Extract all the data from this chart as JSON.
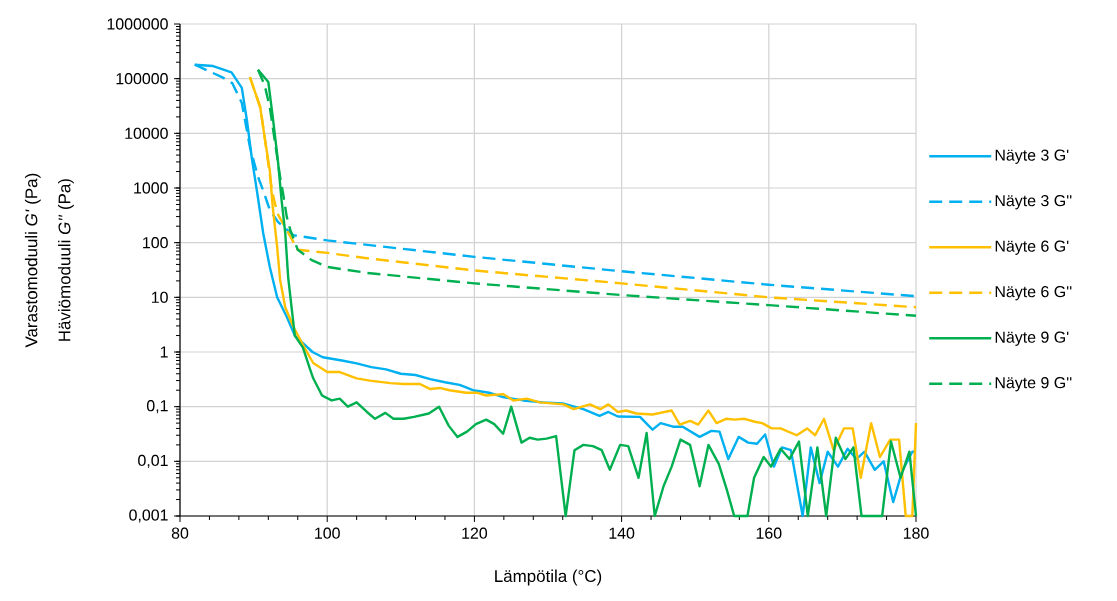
{
  "chart_data": {
    "type": "line",
    "xlabel": "Lämpötila (°C)",
    "ylabel": "Varastomoduuli *G'* (Pa)",
    "annotations": [
      "Häviömoduuli *G''* (Pa)"
    ],
    "log": "y",
    "grid": true,
    "legend": "right",
    "marker": "none",
    "xlim": [
      80,
      180
    ],
    "xticks": [
      80,
      100,
      120,
      140,
      160,
      180
    ],
    "ylim": [
      0.001,
      1000000
    ],
    "yticks": [
      {
        "value": 0.001,
        "label": "0,001"
      },
      {
        "value": 0.01,
        "label": "0,01"
      },
      {
        "value": 0.1,
        "label": "0,1"
      },
      1,
      10,
      100,
      1000,
      10000,
      100000,
      1000000
    ],
    "series": [
      {
        "name": "Näyte 3 G'",
        "color": "#00b0f0",
        "line_style": "solid",
        "x": [
          82,
          84.5,
          87,
          88.4,
          89.1,
          89.8,
          90.5,
          91.3,
          92.2,
          93.2,
          94.5,
          95.6,
          96.7,
          98,
          99.4,
          102,
          104,
          106,
          108,
          110,
          112,
          114,
          116,
          118,
          119.8,
          122,
          123.9,
          126.6,
          129.3,
          132,
          134.8,
          137,
          138.2,
          139.5,
          142.5,
          144.2,
          145.3,
          147,
          148.3,
          150.6,
          152.2,
          153.3,
          154.5,
          155.9,
          157.2,
          158.4,
          159.5,
          160.7,
          161.8,
          163,
          164.6,
          165.7,
          166.9,
          168,
          169.4,
          170.7,
          171.9,
          173,
          174.4,
          175.6,
          176.9,
          178.1,
          179.5,
          180
        ],
        "values": [
          180000,
          170000,
          130000,
          68000,
          17000,
          3200,
          800,
          150,
          36,
          10,
          4.4,
          2,
          1.45,
          1.0,
          0.8,
          0.7,
          0.62,
          0.53,
          0.48,
          0.4,
          0.38,
          0.32,
          0.28,
          0.25,
          0.2,
          0.18,
          0.15,
          0.13,
          0.12,
          0.115,
          0.09,
          0.068,
          0.08,
          0.066,
          0.065,
          0.038,
          0.05,
          0.043,
          0.043,
          0.028,
          0.036,
          0.035,
          0.011,
          0.028,
          0.022,
          0.021,
          0.031,
          0.008,
          0.018,
          0.016,
          0.001,
          0.018,
          0.004,
          0.015,
          0.008,
          0.017,
          0.011,
          0.015,
          0.007,
          0.01,
          0.0018,
          0.0065,
          0.015,
          0.015
        ]
      },
      {
        "name": "Näyte 3 G''",
        "color": "#00b0f0",
        "line_style": "dashed",
        "x": [
          82,
          85.7,
          87.1,
          88.4,
          89.5,
          90.6,
          91.3,
          92.2,
          93.3,
          95.4,
          100,
          120,
          140,
          160,
          180
        ],
        "values": [
          180000,
          107000,
          83000,
          36000,
          5600,
          1600,
          900,
          400,
          240,
          137,
          110,
          55,
          30,
          17,
          10.5
        ]
      },
      {
        "name": "Näyte 6 G'",
        "color": "#ffc000",
        "line_style": "solid",
        "x": [
          89.5,
          90.9,
          91.5,
          92.2,
          92.6,
          93.2,
          93.6,
          94.3,
          95.4,
          96.7,
          98.1,
          100,
          101.7,
          104,
          105.8,
          108.6,
          110.4,
          112.6,
          114,
          115.3,
          116.6,
          118.9,
          120.3,
          121.6,
          123.9,
          125.3,
          127.1,
          128.9,
          132.1,
          133.5,
          135.7,
          137.1,
          138.2,
          139.5,
          140.6,
          142,
          144.2,
          146.8,
          147.9,
          149.3,
          150.4,
          151.8,
          152.9,
          154.2,
          155.4,
          156.7,
          158.1,
          159.1,
          160.4,
          161.6,
          163.8,
          165.2,
          166.3,
          167.5,
          168.8,
          170.2,
          171.4,
          172.5,
          173.9,
          175.1,
          176.5,
          177.7,
          178.6,
          179.5,
          180
        ],
        "values": [
          107000,
          30000,
          8500,
          2100,
          450,
          83,
          21,
          6.6,
          2.9,
          1.35,
          0.63,
          0.43,
          0.43,
          0.33,
          0.3,
          0.27,
          0.26,
          0.26,
          0.21,
          0.22,
          0.2,
          0.18,
          0.18,
          0.16,
          0.17,
          0.13,
          0.14,
          0.12,
          0.11,
          0.09,
          0.11,
          0.09,
          0.11,
          0.08,
          0.085,
          0.075,
          0.072,
          0.085,
          0.047,
          0.055,
          0.047,
          0.085,
          0.05,
          0.06,
          0.058,
          0.06,
          0.053,
          0.05,
          0.04,
          0.04,
          0.03,
          0.04,
          0.03,
          0.06,
          0.016,
          0.04,
          0.04,
          0.005,
          0.05,
          0.012,
          0.025,
          0.025,
          0.001,
          0.001,
          0.05
        ]
      },
      {
        "name": "Näyte 6 G''",
        "color": "#ffc000",
        "line_style": "dashed",
        "x": [
          89.5,
          90.9,
          91.5,
          92.5,
          93.2,
          94.5,
          96,
          100,
          105.4,
          120,
          140,
          160,
          180
        ],
        "values": [
          107000,
          30000,
          8500,
          900,
          350,
          170,
          74,
          65,
          52,
          31,
          18,
          10,
          6.6
        ]
      },
      {
        "name": "Näyte 9 G'",
        "color": "#00b050",
        "line_style": "solid",
        "x": [
          90.6,
          92,
          92.6,
          93.3,
          93.8,
          94.3,
          94.7,
          95.2,
          95.6,
          96.7,
          97.7,
          98.1,
          99.3,
          100.6,
          101.7,
          102.8,
          104,
          105.4,
          106.5,
          107.9,
          109,
          110.4,
          111.8,
          113.8,
          115.2,
          116.5,
          117.7,
          119,
          120.2,
          121.6,
          122.7,
          123.9,
          125,
          126.4,
          127.5,
          128.6,
          129.8,
          131.1,
          132.4,
          133.6,
          134.8,
          136.1,
          137.3,
          138.4,
          139.8,
          140.9,
          142.3,
          143.4,
          144.5,
          145.7,
          146.8,
          148,
          149.3,
          150.6,
          151.8,
          153.2,
          154.3,
          155.3,
          157.1,
          158,
          159.3,
          160.3,
          161.6,
          162.8,
          164.1,
          165.3,
          166.6,
          167.8,
          169.1,
          170.4,
          171.5,
          172.6,
          175.4,
          176.6,
          177.9,
          179.1,
          180
        ],
        "values": [
          145000,
          87000,
          20000,
          3200,
          600,
          150,
          23,
          5.9,
          2,
          1.2,
          0.47,
          0.33,
          0.16,
          0.13,
          0.14,
          0.1,
          0.12,
          0.08,
          0.06,
          0.077,
          0.06,
          0.06,
          0.065,
          0.075,
          0.1,
          0.045,
          0.028,
          0.035,
          0.048,
          0.058,
          0.048,
          0.032,
          0.1,
          0.022,
          0.027,
          0.025,
          0.026,
          0.029,
          0.001,
          0.016,
          0.02,
          0.019,
          0.016,
          0.007,
          0.02,
          0.019,
          0.005,
          0.033,
          0.001,
          0.0035,
          0.008,
          0.025,
          0.02,
          0.0035,
          0.02,
          0.009,
          0.003,
          0.001,
          0.001,
          0.005,
          0.012,
          0.008,
          0.017,
          0.011,
          0.023,
          0.001,
          0.018,
          0.001,
          0.027,
          0.011,
          0.018,
          0.001,
          0.001,
          0.023,
          0.005,
          0.015,
          0.001
        ]
      },
      {
        "name": "Näyte 9 G''",
        "color": "#00b050",
        "line_style": "dashed",
        "x": [
          90.6,
          91.5,
          92.2,
          93.6,
          94,
          94.5,
          95,
          96,
          97.9,
          100,
          105.4,
          120,
          140,
          160,
          180
        ],
        "values": [
          145000,
          76000,
          30000,
          1600,
          800,
          300,
          170,
          74,
          48,
          36,
          28,
          18,
          11,
          7.2,
          4.6
        ]
      }
    ]
  }
}
